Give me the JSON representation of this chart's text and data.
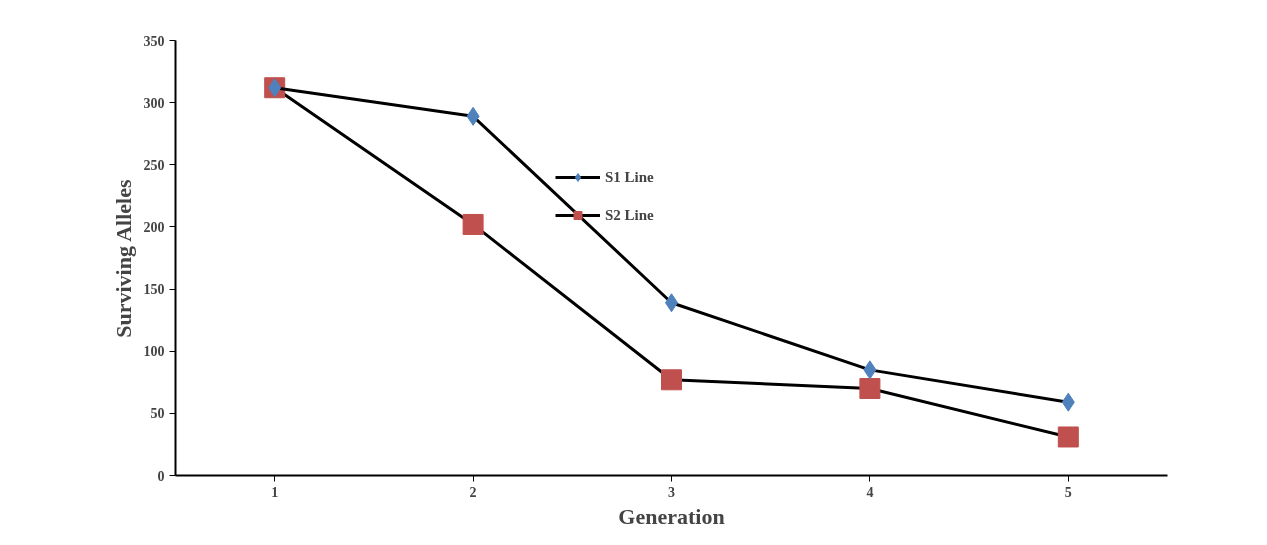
{
  "chart_data": {
    "type": "line",
    "xlabel": "Generation",
    "ylabel": "Surviving Alleles",
    "categories": [
      "1",
      "2",
      "3",
      "4",
      "5"
    ],
    "series": [
      {
        "name": "S1 Line",
        "color": "#4f81bd",
        "marker": "diamond",
        "values": [
          312,
          289,
          139,
          85,
          59
        ]
      },
      {
        "name": "S2 Line",
        "color": "#c0504d",
        "marker": "square",
        "values": [
          312,
          202,
          77,
          70,
          31
        ]
      }
    ],
    "ylim": [
      0,
      350
    ],
    "yticks": [
      0,
      50,
      100,
      150,
      200,
      250,
      300,
      350
    ],
    "grid": false,
    "legend": "top"
  }
}
